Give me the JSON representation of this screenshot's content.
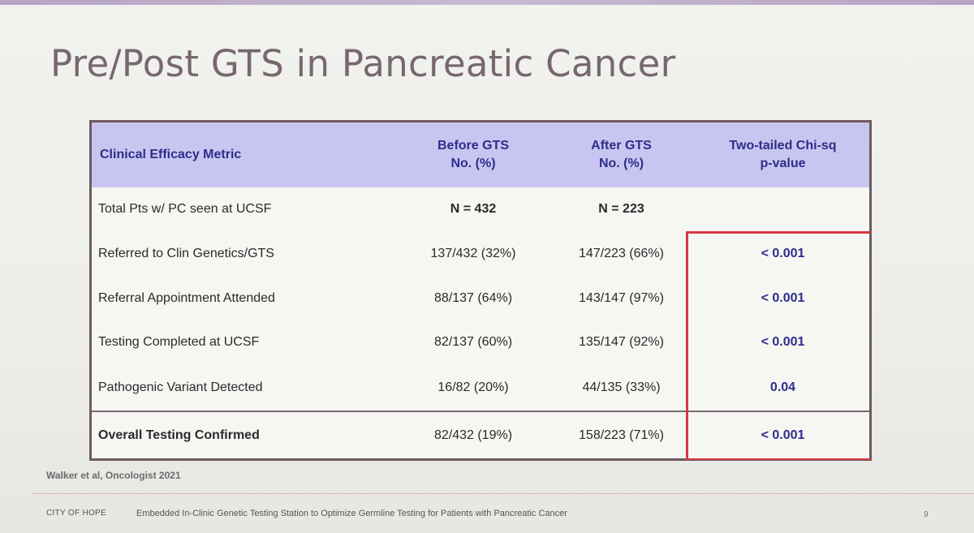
{
  "slide": {
    "title": "Pre/Post GTS in Pancreatic Cancer",
    "citation": "Walker et al, Oncologist 2021",
    "footer_org": "CITY OF HOPE",
    "footer_title": "Embedded In-Clinic Genetic Testing Station to Optimize Germline Testing for Patients with Pancreatic Cancer",
    "page_number": "9"
  },
  "table": {
    "headers": {
      "metric": "Clinical Efficacy Metric",
      "before_line1": "Before GTS",
      "before_line2": "No. (%)",
      "after_line1": "After GTS",
      "after_line2": "No. (%)",
      "pval_line1": "Two-tailed Chi-sq",
      "pval_line2": "p-value"
    },
    "rows": [
      {
        "metric": "Total Pts w/ PC seen at UCSF",
        "before": "N = 432",
        "after": "N = 223",
        "pvalue": ""
      },
      {
        "metric": "Referred to Clin Genetics/GTS",
        "before": "137/432 (32%)",
        "after": "147/223 (66%)",
        "pvalue": "< 0.001"
      },
      {
        "metric": "Referral Appointment Attended",
        "before": "88/137 (64%)",
        "after": "143/147 (97%)",
        "pvalue": "< 0.001"
      },
      {
        "metric": "Testing Completed at UCSF",
        "before": "82/137 (60%)",
        "after": "135/147 (92%)",
        "pvalue": "< 0.001"
      },
      {
        "metric": "Pathogenic Variant Detected",
        "before": "16/82 (20%)",
        "after": "44/135 (33%)",
        "pvalue": "0.04"
      },
      {
        "metric": "Overall Testing Confirmed",
        "before": "82/432 (19%)",
        "after": "158/223 (71%)",
        "pvalue": "< 0.001"
      }
    ]
  },
  "colors": {
    "header_bg": "#c8c6f0",
    "header_text": "#2d2d8a",
    "highlight_box": "#d33a40",
    "title_text": "#77676f"
  }
}
